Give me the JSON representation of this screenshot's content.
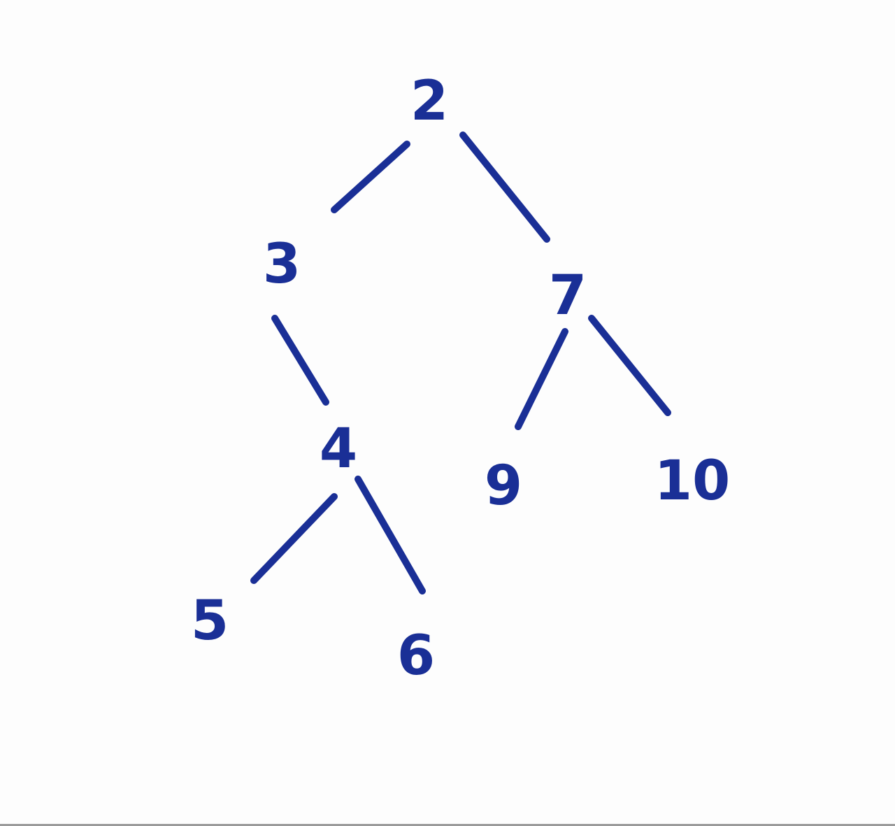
{
  "tree": {
    "nodes": [
      {
        "id": "n2",
        "label": "2"
      },
      {
        "id": "n3",
        "label": "3"
      },
      {
        "id": "n7",
        "label": "7"
      },
      {
        "id": "n4",
        "label": "4"
      },
      {
        "id": "n9",
        "label": "9"
      },
      {
        "id": "n10",
        "label": "10"
      },
      {
        "id": "n5",
        "label": "5"
      },
      {
        "id": "n6",
        "label": "6"
      }
    ],
    "edges": [
      {
        "from": "2",
        "to": "3"
      },
      {
        "from": "2",
        "to": "7"
      },
      {
        "from": "3",
        "to": "4"
      },
      {
        "from": "7",
        "to": "9"
      },
      {
        "from": "7",
        "to": "10"
      },
      {
        "from": "4",
        "to": "5"
      },
      {
        "from": "4",
        "to": "6"
      }
    ],
    "ink_color": "#1a2f96",
    "paper_color": "#fdfdfd"
  }
}
